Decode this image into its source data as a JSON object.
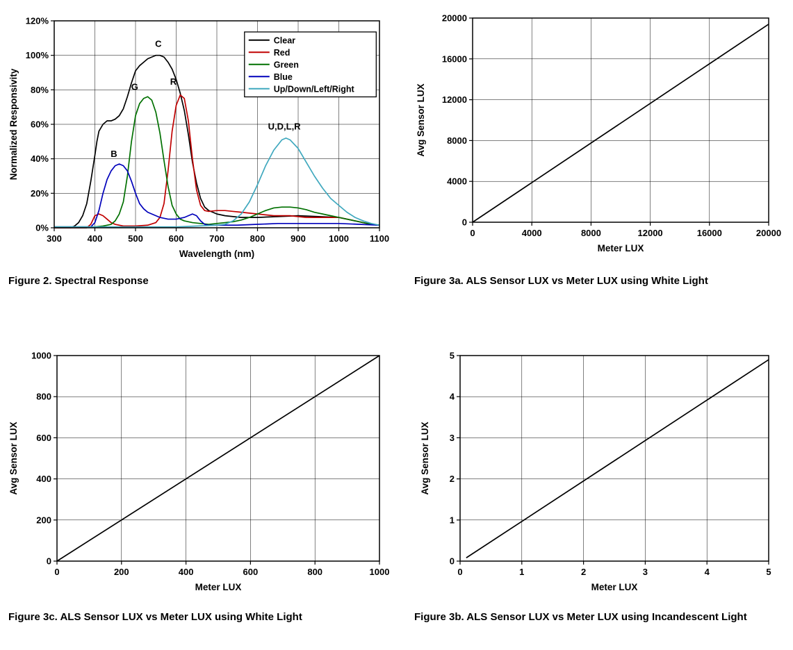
{
  "figures": [
    {
      "caption": "Figure 2. Spectral Response"
    },
    {
      "caption": "Figure 3a. ALS Sensor LUX vs Meter LUX using White Light"
    },
    {
      "caption": "Figure 3c. ALS Sensor LUX vs Meter LUX using White Light"
    },
    {
      "caption": "Figure 3b. ALS Sensor LUX vs Meter LUX using Incandescent Light"
    }
  ],
  "chart_data": [
    {
      "id": "spectral-response",
      "type": "line",
      "title": "",
      "xlabel": "Wavelength (nm)",
      "ylabel": "Normalized Responsivity",
      "xlim": [
        300,
        1100
      ],
      "ylim": [
        0,
        120
      ],
      "xticks": [
        300,
        400,
        500,
        600,
        700,
        800,
        900,
        1000,
        1100
      ],
      "yticks": [
        0,
        20,
        40,
        60,
        80,
        100,
        120
      ],
      "ytick_format": "percent",
      "grid": true,
      "legend": {
        "position": "top-right",
        "entries": [
          "Clear",
          "Red",
          "Green",
          "Blue",
          "Up/Down/Left/Right"
        ]
      },
      "annotations": [
        {
          "text": "C",
          "x": 556,
          "y": 105
        },
        {
          "text": "G",
          "x": 498,
          "y": 80
        },
        {
          "text": "R",
          "x": 593,
          "y": 83
        },
        {
          "text": "B",
          "x": 447,
          "y": 41
        },
        {
          "text": "U,D,L,R",
          "x": 866,
          "y": 57
        }
      ],
      "series": [
        {
          "name": "Clear",
          "color": "#000000",
          "x": [
            300,
            340,
            350,
            360,
            370,
            380,
            390,
            400,
            405,
            410,
            420,
            430,
            440,
            450,
            460,
            470,
            480,
            490,
            500,
            510,
            520,
            530,
            540,
            550,
            560,
            570,
            580,
            590,
            600,
            610,
            620,
            630,
            640,
            650,
            660,
            670,
            680,
            690,
            700,
            720,
            740,
            760,
            780,
            800,
            850,
            900,
            950,
            1000,
            1020,
            1040,
            1060,
            1080,
            1100
          ],
          "y": [
            0,
            0,
            1,
            3,
            7,
            14,
            27,
            42,
            50,
            56,
            60,
            62,
            62,
            63,
            65,
            69,
            76,
            84,
            91,
            94,
            96,
            98,
            99,
            100,
            100,
            99,
            96,
            92,
            86,
            78,
            68,
            54,
            38,
            26,
            17,
            12,
            10,
            9,
            8,
            7,
            6.5,
            6,
            6,
            6,
            6.5,
            7,
            6.5,
            6,
            5,
            4,
            3,
            2,
            1.5
          ]
        },
        {
          "name": "Red",
          "color": "#c00000",
          "x": [
            300,
            380,
            390,
            400,
            410,
            420,
            430,
            440,
            450,
            470,
            500,
            530,
            550,
            560,
            570,
            580,
            590,
            600,
            610,
            620,
            630,
            640,
            650,
            660,
            670,
            680,
            700,
            720,
            740,
            760,
            780,
            800,
            820,
            840,
            860,
            880,
            900,
            920,
            940,
            960,
            980,
            1000,
            1020,
            1040,
            1060,
            1080,
            1100
          ],
          "y": [
            0,
            0,
            2,
            7,
            8,
            7,
            5,
            3,
            2,
            1,
            1,
            1.5,
            3,
            6,
            14,
            33,
            56,
            71,
            77,
            75,
            62,
            40,
            22,
            13,
            10,
            9.5,
            10,
            10,
            9.5,
            9,
            8.5,
            8,
            7.5,
            7,
            7,
            7,
            6.5,
            6,
            6,
            6,
            6,
            6,
            5,
            4,
            3,
            2,
            1.5
          ]
        },
        {
          "name": "Green",
          "color": "#007000",
          "x": [
            300,
            400,
            420,
            430,
            440,
            450,
            460,
            470,
            480,
            490,
            500,
            510,
            520,
            530,
            540,
            550,
            560,
            570,
            580,
            590,
            600,
            610,
            620,
            630,
            640,
            660,
            680,
            700,
            720,
            740,
            760,
            780,
            800,
            820,
            840,
            860,
            880,
            900,
            920,
            940,
            960,
            980,
            1000,
            1020,
            1040,
            1060,
            1080,
            1100
          ],
          "y": [
            0.5,
            0.5,
            1,
            1.5,
            2,
            4,
            8,
            15,
            30,
            50,
            65,
            72,
            75,
            76,
            74,
            67,
            55,
            39,
            24,
            13,
            8,
            5,
            4,
            3.5,
            3,
            2.5,
            2,
            2.5,
            3,
            3.5,
            4.5,
            6,
            8,
            10,
            11.5,
            12,
            12,
            11.5,
            10.5,
            9,
            8,
            7,
            6,
            5,
            4,
            3,
            2,
            1.5
          ]
        },
        {
          "name": "Blue",
          "color": "#0000bb",
          "x": [
            300,
            390,
            400,
            410,
            420,
            430,
            440,
            450,
            460,
            470,
            480,
            490,
            500,
            510,
            520,
            530,
            540,
            550,
            560,
            580,
            600,
            610,
            620,
            630,
            640,
            650,
            660,
            670,
            680,
            700,
            750,
            800,
            850,
            900,
            950,
            1000,
            1050,
            1100
          ],
          "y": [
            0.5,
            0.5,
            3,
            10,
            20,
            28,
            33,
            36,
            37,
            36,
            33,
            27,
            20,
            14,
            11,
            9,
            8,
            7,
            6,
            5,
            5,
            5.5,
            6,
            7,
            8,
            7,
            4,
            2,
            1.5,
            1.5,
            1.5,
            2,
            2.5,
            2.5,
            2.5,
            2.5,
            2,
            1.5
          ]
        },
        {
          "name": "Up/Down/Left/Right",
          "color": "#3fa8be",
          "x": [
            300,
            400,
            500,
            600,
            650,
            700,
            720,
            740,
            760,
            780,
            800,
            820,
            840,
            860,
            870,
            880,
            900,
            920,
            940,
            960,
            980,
            1000,
            1020,
            1040,
            1060,
            1080,
            1100
          ],
          "y": [
            0.5,
            0.5,
            0.5,
            0.5,
            1,
            1.5,
            2,
            4,
            8,
            15,
            25,
            36,
            45,
            51,
            52,
            51,
            46,
            38,
            30,
            23,
            17,
            13,
            9,
            6,
            4,
            2.5,
            1.5
          ]
        }
      ]
    },
    {
      "id": "fig3a-white-light",
      "type": "line",
      "title": "",
      "xlabel": "Meter LUX",
      "ylabel": "Avg Sensor LUX",
      "xlim": [
        0,
        20000
      ],
      "ylim": [
        0,
        20000
      ],
      "xticks": [
        0,
        4000,
        8000,
        12000,
        16000,
        20000
      ],
      "yticks": [
        0,
        4000,
        8000,
        12000,
        16000,
        20000
      ],
      "grid": true,
      "series": [
        {
          "name": "ALS Sensor LUX",
          "color": "#000000",
          "x": [
            0,
            20000
          ],
          "y": [
            0,
            19400
          ]
        }
      ]
    },
    {
      "id": "fig3c-white-light-low-range",
      "type": "line",
      "title": "",
      "xlabel": "Meter LUX",
      "ylabel": "Avg Sensor LUX",
      "xlim": [
        0,
        1000
      ],
      "ylim": [
        0,
        1000
      ],
      "xticks": [
        0,
        200,
        400,
        600,
        800,
        1000
      ],
      "yticks": [
        0,
        200,
        400,
        600,
        800,
        1000
      ],
      "grid": true,
      "series": [
        {
          "name": "ALS Sensor LUX",
          "color": "#000000",
          "x": [
            0,
            1000
          ],
          "y": [
            0,
            1000
          ]
        }
      ]
    },
    {
      "id": "fig3b-incandescent-light",
      "type": "line",
      "title": "",
      "xlabel": "Meter LUX",
      "ylabel": "Avg Sensor LUX",
      "xlim": [
        0,
        5
      ],
      "ylim": [
        0,
        5
      ],
      "xticks": [
        0,
        1,
        2,
        3,
        4,
        5
      ],
      "yticks": [
        0,
        1,
        2,
        3,
        4,
        5
      ],
      "grid": true,
      "series": [
        {
          "name": "ALS Sensor LUX",
          "color": "#000000",
          "x": [
            0.1,
            5
          ],
          "y": [
            0.08,
            4.9
          ]
        }
      ]
    }
  ]
}
